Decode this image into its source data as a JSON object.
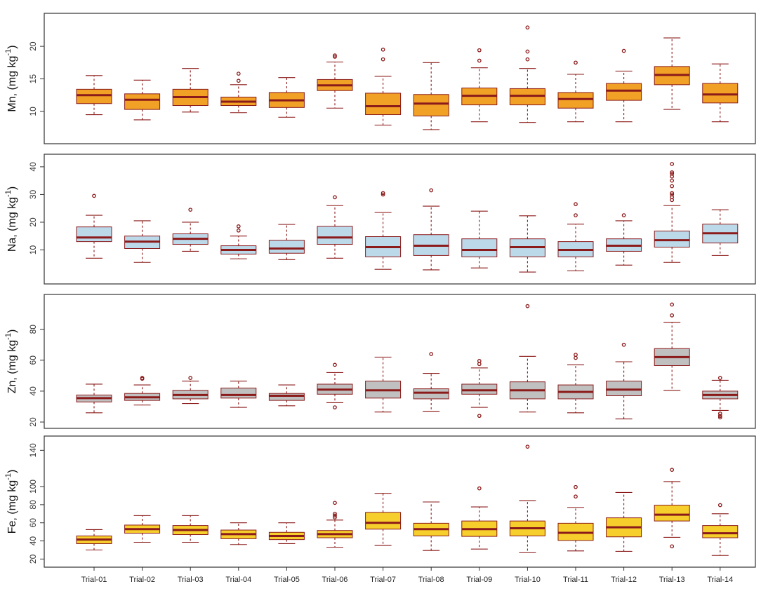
{
  "chart_data": {
    "type": "boxplot",
    "categories": [
      "Trial-01",
      "Trial-02",
      "Trial-03",
      "Trial-04",
      "Trial-05",
      "Trial-06",
      "Trial-07",
      "Trial-08",
      "Trial-09",
      "Trial-10",
      "Trial-11",
      "Trial-12",
      "Trial-13",
      "Trial-14"
    ],
    "panels": [
      {
        "ylabel": "Mn, (mg kg",
        "ylabel_sup": "-1",
        "ylabel_close": ")",
        "ylim": [
          6,
          24
        ],
        "yticks": [
          10,
          15,
          20
        ],
        "colors": {
          "fill": "#f0a126",
          "line": "#8b1a1a"
        },
        "boxes": [
          {
            "wlo": 9.5,
            "q1": 11.2,
            "med": 12.5,
            "q3": 13.4,
            "whi": 15.5,
            "out": []
          },
          {
            "wlo": 8.7,
            "q1": 10.3,
            "med": 11.8,
            "q3": 12.7,
            "whi": 14.8,
            "out": []
          },
          {
            "wlo": 9.9,
            "q1": 10.9,
            "med": 12.2,
            "q3": 13.4,
            "whi": 16.6,
            "out": []
          },
          {
            "wlo": 9.8,
            "q1": 10.9,
            "med": 11.5,
            "q3": 12.2,
            "whi": 14.1,
            "out": [
              14.7,
              15.8
            ]
          },
          {
            "wlo": 9.1,
            "q1": 10.6,
            "med": 11.7,
            "q3": 12.9,
            "whi": 15.2,
            "out": []
          },
          {
            "wlo": 10.5,
            "q1": 13.2,
            "med": 14.0,
            "q3": 14.9,
            "whi": 17.6,
            "out": [
              18.4,
              18.6
            ]
          },
          {
            "wlo": 7.9,
            "q1": 9.5,
            "med": 10.8,
            "q3": 12.8,
            "whi": 15.4,
            "out": [
              18.0,
              19.5
            ]
          },
          {
            "wlo": 7.2,
            "q1": 9.3,
            "med": 11.2,
            "q3": 12.6,
            "whi": 17.5,
            "out": []
          },
          {
            "wlo": 8.4,
            "q1": 11.0,
            "med": 12.4,
            "q3": 13.6,
            "whi": 16.7,
            "out": [
              17.8,
              19.4
            ]
          },
          {
            "wlo": 8.3,
            "q1": 11.0,
            "med": 12.4,
            "q3": 13.5,
            "whi": 16.6,
            "out": [
              18.0,
              19.2,
              22.9
            ]
          },
          {
            "wlo": 8.4,
            "q1": 10.5,
            "med": 11.9,
            "q3": 12.9,
            "whi": 15.7,
            "out": [
              17.5
            ]
          },
          {
            "wlo": 8.4,
            "q1": 11.7,
            "med": 13.2,
            "q3": 14.3,
            "whi": 16.2,
            "out": [
              19.3
            ]
          },
          {
            "wlo": 10.3,
            "q1": 14.1,
            "med": 15.6,
            "q3": 16.9,
            "whi": 21.3,
            "out": []
          },
          {
            "wlo": 8.4,
            "q1": 11.3,
            "med": 12.6,
            "q3": 14.3,
            "whi": 17.3,
            "out": []
          }
        ]
      },
      {
        "ylabel": "Na, (mg kg",
        "ylabel_sup": "-1",
        "ylabel_close": ")",
        "ylim": [
          0,
          42
        ],
        "yticks": [
          10,
          20,
          30,
          40
        ],
        "colors": {
          "fill": "#bcd9ea",
          "line": "#8b1a1a"
        },
        "boxes": [
          {
            "wlo": 7.0,
            "q1": 13.0,
            "med": 14.5,
            "q3": 18.3,
            "whi": 22.5,
            "out": [
              29.5
            ]
          },
          {
            "wlo": 5.5,
            "q1": 10.5,
            "med": 13.0,
            "q3": 15.0,
            "whi": 20.5,
            "out": []
          },
          {
            "wlo": 9.5,
            "q1": 12.0,
            "med": 14.0,
            "q3": 15.8,
            "whi": 20.0,
            "out": [
              24.5
            ]
          },
          {
            "wlo": 6.8,
            "q1": 8.5,
            "med": 10.0,
            "q3": 11.5,
            "whi": 15.0,
            "out": [
              17.0,
              18.5
            ]
          },
          {
            "wlo": 6.5,
            "q1": 8.8,
            "med": 10.5,
            "q3": 13.5,
            "whi": 19.2,
            "out": []
          },
          {
            "wlo": 7.0,
            "q1": 12.0,
            "med": 14.5,
            "q3": 18.5,
            "whi": 26.0,
            "out": [
              29.0
            ]
          },
          {
            "wlo": 3.0,
            "q1": 7.5,
            "med": 11.0,
            "q3": 14.8,
            "whi": 23.5,
            "out": [
              30.0,
              30.5
            ]
          },
          {
            "wlo": 2.8,
            "q1": 8.0,
            "med": 11.5,
            "q3": 15.5,
            "whi": 25.8,
            "out": [
              31.5
            ]
          },
          {
            "wlo": 3.5,
            "q1": 7.5,
            "med": 10.0,
            "q3": 14.0,
            "whi": 24.0,
            "out": []
          },
          {
            "wlo": 2.0,
            "q1": 7.5,
            "med": 11.0,
            "q3": 14.0,
            "whi": 22.3,
            "out": []
          },
          {
            "wlo": 2.5,
            "q1": 7.5,
            "med": 10.0,
            "q3": 13.0,
            "whi": 19.3,
            "out": [
              22.5,
              26.5
            ]
          },
          {
            "wlo": 4.5,
            "q1": 9.5,
            "med": 11.5,
            "q3": 14.0,
            "whi": 20.5,
            "out": [
              22.5
            ]
          },
          {
            "wlo": 5.5,
            "q1": 11.0,
            "med": 13.5,
            "q3": 16.8,
            "whi": 26.0,
            "out": [
              28.0,
              29.0,
              30.0,
              30.5,
              33.0,
              35.0,
              36.5,
              37.5,
              38.0,
              41.0
            ]
          },
          {
            "wlo": 8.0,
            "q1": 12.5,
            "med": 16.0,
            "q3": 19.3,
            "whi": 24.5,
            "out": []
          }
        ]
      },
      {
        "ylabel": "Zn, (mg kg",
        "ylabel_sup": "-1",
        "ylabel_close": ")",
        "ylim": [
          20,
          98
        ],
        "yticks": [
          20,
          40,
          60,
          80
        ],
        "colors": {
          "fill": "#c0c0c0",
          "line": "#8b1a1a"
        },
        "boxes": [
          {
            "wlo": 26.0,
            "q1": 33.0,
            "med": 35.5,
            "q3": 37.5,
            "whi": 44.5,
            "out": []
          },
          {
            "wlo": 31.0,
            "q1": 34.0,
            "med": 36.0,
            "q3": 38.5,
            "whi": 44.0,
            "out": [
              48.0,
              48.5
            ]
          },
          {
            "wlo": 32.0,
            "q1": 35.0,
            "med": 37.5,
            "q3": 40.5,
            "whi": 46.5,
            "out": [
              48.5
            ]
          },
          {
            "wlo": 29.5,
            "q1": 35.5,
            "med": 37.5,
            "q3": 42.0,
            "whi": 46.5,
            "out": []
          },
          {
            "wlo": 30.5,
            "q1": 34.0,
            "med": 37.0,
            "q3": 38.5,
            "whi": 44.0,
            "out": []
          },
          {
            "wlo": 32.5,
            "q1": 38.0,
            "med": 41.0,
            "q3": 44.5,
            "whi": 52.0,
            "out": [
              29.5,
              57.0
            ]
          },
          {
            "wlo": 26.5,
            "q1": 35.5,
            "med": 40.5,
            "q3": 46.5,
            "whi": 62.0,
            "out": []
          },
          {
            "wlo": 27.0,
            "q1": 35.0,
            "med": 39.0,
            "q3": 41.5,
            "whi": 51.5,
            "out": [
              64.0
            ]
          },
          {
            "wlo": 29.5,
            "q1": 38.0,
            "med": 40.5,
            "q3": 44.5,
            "whi": 55.0,
            "out": [
              24.0,
              57.5,
              59.5
            ]
          },
          {
            "wlo": 26.5,
            "q1": 35.0,
            "med": 40.5,
            "q3": 46.0,
            "whi": 62.5,
            "out": [
              95.0
            ]
          },
          {
            "wlo": 26.0,
            "q1": 35.0,
            "med": 39.5,
            "q3": 44.0,
            "whi": 57.0,
            "out": [
              61.5,
              63.5
            ]
          },
          {
            "wlo": 22.0,
            "q1": 37.0,
            "med": 41.0,
            "q3": 46.5,
            "whi": 59.0,
            "out": [
              70.0
            ]
          },
          {
            "wlo": 40.5,
            "q1": 56.5,
            "med": 62.0,
            "q3": 67.5,
            "whi": 84.5,
            "out": [
              89.0,
              96.0
            ]
          },
          {
            "wlo": 27.5,
            "q1": 35.0,
            "med": 37.5,
            "q3": 40.0,
            "whi": 47.0,
            "out": [
              23.0,
              24.0,
              25.5,
              48.5
            ]
          }
        ]
      },
      {
        "ylabel": "Fe, (mg kg",
        "ylabel_sup": "-1",
        "ylabel_close": ")",
        "ylim": [
          18,
          148
        ],
        "yticks": [
          20,
          40,
          60,
          80,
          100,
          140
        ],
        "colors": {
          "fill": "#f6cf2c",
          "line": "#8b1a1a"
        },
        "boxes": [
          {
            "wlo": 30.0,
            "q1": 37.0,
            "med": 41.5,
            "q3": 45.5,
            "whi": 52.5,
            "out": []
          },
          {
            "wlo": 38.5,
            "q1": 48.5,
            "med": 53.0,
            "q3": 57.5,
            "whi": 68.0,
            "out": []
          },
          {
            "wlo": 38.5,
            "q1": 47.0,
            "med": 52.0,
            "q3": 57.0,
            "whi": 68.0,
            "out": []
          },
          {
            "wlo": 36.0,
            "q1": 42.5,
            "med": 47.5,
            "q3": 52.0,
            "whi": 60.0,
            "out": []
          },
          {
            "wlo": 37.0,
            "q1": 41.5,
            "med": 45.5,
            "q3": 49.5,
            "whi": 60.0,
            "out": []
          },
          {
            "wlo": 33.0,
            "q1": 43.5,
            "med": 47.5,
            "q3": 51.5,
            "whi": 63.0,
            "out": [
              66.0,
              68.0,
              70.0,
              82.0
            ]
          },
          {
            "wlo": 35.0,
            "q1": 53.0,
            "med": 60.0,
            "q3": 71.5,
            "whi": 92.5,
            "out": []
          },
          {
            "wlo": 29.5,
            "q1": 45.5,
            "med": 53.0,
            "q3": 59.5,
            "whi": 83.0,
            "out": []
          },
          {
            "wlo": 31.0,
            "q1": 45.0,
            "med": 53.0,
            "q3": 62.0,
            "whi": 77.5,
            "out": [
              98.0
            ]
          },
          {
            "wlo": 27.0,
            "q1": 45.5,
            "med": 54.0,
            "q3": 62.0,
            "whi": 84.5,
            "out": [
              144.0
            ]
          },
          {
            "wlo": 29.0,
            "q1": 40.5,
            "med": 49.0,
            "q3": 59.5,
            "whi": 77.0,
            "out": [
              89.0,
              99.5
            ]
          },
          {
            "wlo": 28.5,
            "q1": 44.5,
            "med": 55.0,
            "q3": 65.5,
            "whi": 93.5,
            "out": []
          },
          {
            "wlo": 44.0,
            "q1": 62.0,
            "med": 69.0,
            "q3": 79.5,
            "whi": 105.5,
            "out": [
              34.0,
              118.5
            ]
          },
          {
            "wlo": 24.0,
            "q1": 43.5,
            "med": 48.5,
            "q3": 57.0,
            "whi": 70.0,
            "out": [
              79.5
            ]
          }
        ]
      }
    ]
  }
}
